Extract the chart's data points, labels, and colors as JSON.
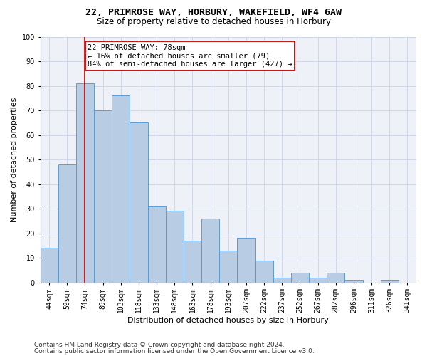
{
  "title_line1": "22, PRIMROSE WAY, HORBURY, WAKEFIELD, WF4 6AW",
  "title_line2": "Size of property relative to detached houses in Horbury",
  "xlabel": "Distribution of detached houses by size in Horbury",
  "ylabel": "Number of detached properties",
  "categories": [
    "44sqm",
    "59sqm",
    "74sqm",
    "89sqm",
    "103sqm",
    "118sqm",
    "133sqm",
    "148sqm",
    "163sqm",
    "178sqm",
    "193sqm",
    "207sqm",
    "222sqm",
    "237sqm",
    "252sqm",
    "267sqm",
    "282sqm",
    "296sqm",
    "311sqm",
    "326sqm",
    "341sqm"
  ],
  "values": [
    14,
    48,
    81,
    70,
    76,
    65,
    31,
    29,
    17,
    26,
    13,
    18,
    9,
    2,
    4,
    2,
    4,
    1,
    0,
    1,
    0
  ],
  "bar_color": "#b8cce4",
  "bar_edge_color": "#5b9bd5",
  "vline_x": 2,
  "vline_color": "#c00000",
  "annotation_text": "22 PRIMROSE WAY: 78sqm\n← 16% of detached houses are smaller (79)\n84% of semi-detached houses are larger (427) →",
  "annotation_box_color": "white",
  "annotation_box_edge_color": "#c00000",
  "ylim": [
    0,
    100
  ],
  "yticks": [
    0,
    10,
    20,
    30,
    40,
    50,
    60,
    70,
    80,
    90,
    100
  ],
  "grid_color": "#d0d8e8",
  "bg_color": "#eef2f8",
  "footer_line1": "Contains HM Land Registry data © Crown copyright and database right 2024.",
  "footer_line2": "Contains public sector information licensed under the Open Government Licence v3.0.",
  "title_fontsize": 9.5,
  "subtitle_fontsize": 8.5,
  "axis_label_fontsize": 8,
  "tick_fontsize": 7,
  "annotation_fontsize": 7.5,
  "footer_fontsize": 6.5
}
